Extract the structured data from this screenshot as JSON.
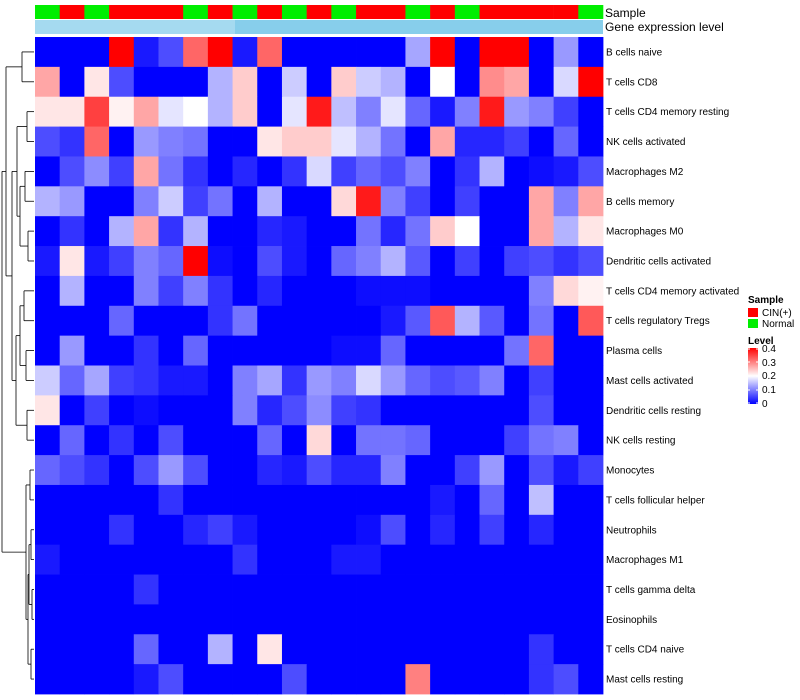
{
  "chart_data": {
    "type": "heatmap",
    "annotation_rows": {
      "sample_label": "Sample",
      "expression_label": "Gene expression level"
    },
    "sample_groups": [
      "N",
      "C",
      "N",
      "C",
      "C",
      "C",
      "N",
      "C",
      "N",
      "C",
      "N",
      "C",
      "N",
      "C",
      "C",
      "N",
      "C",
      "N",
      "C",
      "C",
      "C",
      "C",
      "N"
    ],
    "rows": [
      "B cells naive",
      "T cells CD8",
      "T cells CD4 memory resting",
      "NK cells activated",
      "Macrophages M2",
      "B cells memory",
      "Macrophages M0",
      "Dendritic cells activated",
      "T cells CD4 memory activated",
      "T cells regulatory  Tregs",
      "Plasma cells",
      "Mast cells activated",
      "Dendritic cells resting",
      "NK cells resting",
      "Monocytes",
      "T cells follicular helper",
      "Neutrophils",
      "Macrophages M1",
      "T cells gamma delta",
      "Eosinophils",
      "T cells CD4 naive",
      "Mast cells resting"
    ],
    "values": [
      [
        0.0,
        0.0,
        0.0,
        0.4,
        0.02,
        0.06,
        0.32,
        0.4,
        0.02,
        0.32,
        0.0,
        0.0,
        0.0,
        0.0,
        0.0,
        0.13,
        0.4,
        0.0,
        0.4,
        0.4,
        0.0,
        0.12,
        0.0
      ],
      [
        0.27,
        0.0,
        0.22,
        0.06,
        0.0,
        0.0,
        0.0,
        0.14,
        0.24,
        0.0,
        0.16,
        0.0,
        0.24,
        0.16,
        0.14,
        0.0,
        0.2,
        0.0,
        0.29,
        0.27,
        0.0,
        0.17,
        0.4
      ],
      [
        0.22,
        0.22,
        0.35,
        0.21,
        0.27,
        0.18,
        0.2,
        0.14,
        0.24,
        0.0,
        0.18,
        0.38,
        0.15,
        0.1,
        0.18,
        0.08,
        0.02,
        0.1,
        0.38,
        0.12,
        0.1,
        0.05,
        0.0
      ],
      [
        0.06,
        0.04,
        0.32,
        0.0,
        0.12,
        0.1,
        0.09,
        0.0,
        0.0,
        0.22,
        0.24,
        0.24,
        0.18,
        0.14,
        0.09,
        0.0,
        0.27,
        0.03,
        0.03,
        0.05,
        0.0,
        0.08,
        0.0
      ],
      [
        0.0,
        0.06,
        0.11,
        0.05,
        0.27,
        0.09,
        0.04,
        0.0,
        0.03,
        0.0,
        0.04,
        0.17,
        0.05,
        0.08,
        0.06,
        0.1,
        0.0,
        0.04,
        0.14,
        0.0,
        0.01,
        0.02,
        0.06
      ],
      [
        0.14,
        0.12,
        0.0,
        0.0,
        0.1,
        0.16,
        0.05,
        0.09,
        0.0,
        0.14,
        0.0,
        0.0,
        0.23,
        0.38,
        0.1,
        0.05,
        0.0,
        0.05,
        0.0,
        0.0,
        0.27,
        0.1,
        0.27
      ],
      [
        0.0,
        0.04,
        0.0,
        0.14,
        0.27,
        0.04,
        0.14,
        0.0,
        0.0,
        0.03,
        0.02,
        0.0,
        0.0,
        0.09,
        0.03,
        0.09,
        0.24,
        0.2,
        0.0,
        0.0,
        0.27,
        0.14,
        0.22
      ],
      [
        0.02,
        0.22,
        0.02,
        0.05,
        0.1,
        0.08,
        0.4,
        0.01,
        0.0,
        0.06,
        0.02,
        0.0,
        0.08,
        0.1,
        0.14,
        0.07,
        0.0,
        0.05,
        0.0,
        0.05,
        0.06,
        0.04,
        0.06
      ],
      [
        0.0,
        0.14,
        0.0,
        0.0,
        0.1,
        0.05,
        0.1,
        0.04,
        0.0,
        0.03,
        0.0,
        0.0,
        0.0,
        0.01,
        0.01,
        0.01,
        0.0,
        0.0,
        0.0,
        0.0,
        0.1,
        0.23,
        0.21
      ],
      [
        0.0,
        0.0,
        0.0,
        0.08,
        0.0,
        0.0,
        0.0,
        0.04,
        0.09,
        0.0,
        0.0,
        0.0,
        0.0,
        0.0,
        0.02,
        0.07,
        0.33,
        0.14,
        0.07,
        0.0,
        0.09,
        0.0,
        0.33
      ],
      [
        0.0,
        0.12,
        0.0,
        0.0,
        0.04,
        0.0,
        0.08,
        0.0,
        0.0,
        0.0,
        0.0,
        0.0,
        0.01,
        0.01,
        0.08,
        0.0,
        0.0,
        0.0,
        0.0,
        0.09,
        0.32,
        0.0,
        0.0
      ],
      [
        0.16,
        0.08,
        0.13,
        0.05,
        0.04,
        0.02,
        0.02,
        0.0,
        0.1,
        0.13,
        0.04,
        0.12,
        0.1,
        0.17,
        0.12,
        0.08,
        0.06,
        0.07,
        0.1,
        0.0,
        0.05,
        0.0,
        0.0
      ],
      [
        0.22,
        0.0,
        0.05,
        0.0,
        0.01,
        0.0,
        0.0,
        0.0,
        0.1,
        0.03,
        0.06,
        0.11,
        0.05,
        0.04,
        0.0,
        0.0,
        0.0,
        0.0,
        0.0,
        0.0,
        0.06,
        0.0,
        0.0
      ],
      [
        0.0,
        0.08,
        0.0,
        0.04,
        0.0,
        0.06,
        0.0,
        0.0,
        0.0,
        0.08,
        0.0,
        0.23,
        0.0,
        0.09,
        0.09,
        0.08,
        0.0,
        0.0,
        0.0,
        0.05,
        0.09,
        0.1,
        0.0
      ],
      [
        0.08,
        0.06,
        0.04,
        0.0,
        0.06,
        0.12,
        0.06,
        0.0,
        0.0,
        0.03,
        0.02,
        0.06,
        0.03,
        0.03,
        0.1,
        0.0,
        0.0,
        0.05,
        0.12,
        0.0,
        0.06,
        0.02,
        0.05
      ],
      [
        0.0,
        0.0,
        0.0,
        0.0,
        0.0,
        0.04,
        0.0,
        0.0,
        0.0,
        0.0,
        0.0,
        0.0,
        0.0,
        0.0,
        0.0,
        0.0,
        0.02,
        0.0,
        0.08,
        0.0,
        0.15,
        0.0,
        0.0
      ],
      [
        0.0,
        0.0,
        0.0,
        0.04,
        0.0,
        0.0,
        0.03,
        0.05,
        0.02,
        0.0,
        0.0,
        0.0,
        0.0,
        0.01,
        0.06,
        0.0,
        0.03,
        0.0,
        0.05,
        0.0,
        0.03,
        0.0,
        0.0
      ],
      [
        0.02,
        0.0,
        0.0,
        0.0,
        0.0,
        0.0,
        0.0,
        0.0,
        0.04,
        0.0,
        0.0,
        0.0,
        0.02,
        0.02,
        0.0,
        0.0,
        0.0,
        0.0,
        0.0,
        0.0,
        0.0,
        0.0,
        0.0
      ],
      [
        0.0,
        0.0,
        0.0,
        0.0,
        0.04,
        0.0,
        0.0,
        0.0,
        0.0,
        0.0,
        0.0,
        0.0,
        0.0,
        0.0,
        0.0,
        0.0,
        0.0,
        0.0,
        0.0,
        0.0,
        0.0,
        0.0,
        0.0
      ],
      [
        0.0,
        0.0,
        0.0,
        0.0,
        0.0,
        0.0,
        0.0,
        0.0,
        0.0,
        0.0,
        0.0,
        0.0,
        0.0,
        0.0,
        0.0,
        0.0,
        0.0,
        0.0,
        0.0,
        0.0,
        0.0,
        0.0,
        0.0
      ],
      [
        0.0,
        0.0,
        0.0,
        0.0,
        0.08,
        0.0,
        0.0,
        0.14,
        0.0,
        0.22,
        0.0,
        0.0,
        0.0,
        0.0,
        0.0,
        0.0,
        0.0,
        0.0,
        0.0,
        0.0,
        0.04,
        0.0,
        0.0
      ],
      [
        0.0,
        0.0,
        0.0,
        0.0,
        0.02,
        0.06,
        0.0,
        0.0,
        0.0,
        0.0,
        0.06,
        0.0,
        0.0,
        0.0,
        0.0,
        0.3,
        0.0,
        0.0,
        0.0,
        0.0,
        0.04,
        0.06,
        0.0
      ]
    ],
    "legend": {
      "sample_title": "Sample",
      "sample_entries": [
        {
          "key": "C",
          "label": "CIN(+)",
          "color": "#ff0000"
        },
        {
          "key": "N",
          "label": "Normal",
          "color": "#00ee00"
        }
      ],
      "level_title": "Level",
      "level_ticks": [
        "0.4",
        "0.3",
        "0.2",
        "0.1",
        "0"
      ],
      "level_range": [
        0,
        0.4
      ]
    },
    "colors": {
      "low": "#0000ff",
      "mid": "#ffffff",
      "high": "#ff0000",
      "expression_bar": "#87ceeb"
    }
  }
}
